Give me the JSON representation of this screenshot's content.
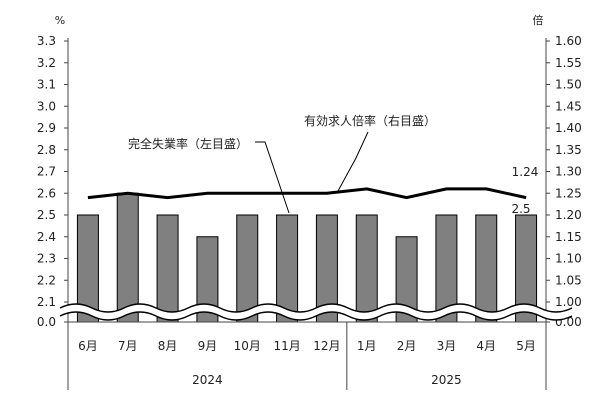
{
  "chart_data": {
    "type": "bar",
    "categories": [
      "6月",
      "7月",
      "8月",
      "9月",
      "10月",
      "11月",
      "12月",
      "1月",
      "2月",
      "3月",
      "4月",
      "5月"
    ],
    "groups": [
      {
        "label": "2024",
        "from": 0,
        "to": 6
      },
      {
        "label": "2025",
        "from": 7,
        "to": 11
      }
    ],
    "left_axis": {
      "unit": "%",
      "ticks": [
        "3.3",
        "3.2",
        "3.1",
        "3.0",
        "2.9",
        "2.8",
        "2.7",
        "2.6",
        "2.5",
        "2.4",
        "2.3",
        "2.2",
        "2.1",
        "0.0"
      ],
      "range": [
        2.0,
        3.3
      ],
      "break": true
    },
    "right_axis": {
      "unit": "倍",
      "ticks": [
        "1.60",
        "1.55",
        "1.50",
        "1.45",
        "1.40",
        "1.35",
        "1.30",
        "1.25",
        "1.20",
        "1.15",
        "1.10",
        "1.05",
        "1.00",
        "0.00"
      ],
      "range": [
        0.95,
        1.6
      ],
      "break": true
    },
    "series": [
      {
        "name": "完全失業率（左目盛）",
        "type": "bar",
        "axis": "left",
        "values": [
          2.5,
          2.6,
          2.5,
          2.4,
          2.5,
          2.5,
          2.5,
          2.5,
          2.4,
          2.5,
          2.5,
          2.5
        ],
        "color": "#808080",
        "last_label": "2.5"
      },
      {
        "name": "有効求人倍率（右目盛）",
        "type": "line",
        "axis": "right",
        "values": [
          1.24,
          1.25,
          1.24,
          1.25,
          1.25,
          1.25,
          1.25,
          1.26,
          1.24,
          1.26,
          1.26,
          1.24
        ],
        "color": "#000000",
        "last_label": "1.24"
      }
    ]
  }
}
